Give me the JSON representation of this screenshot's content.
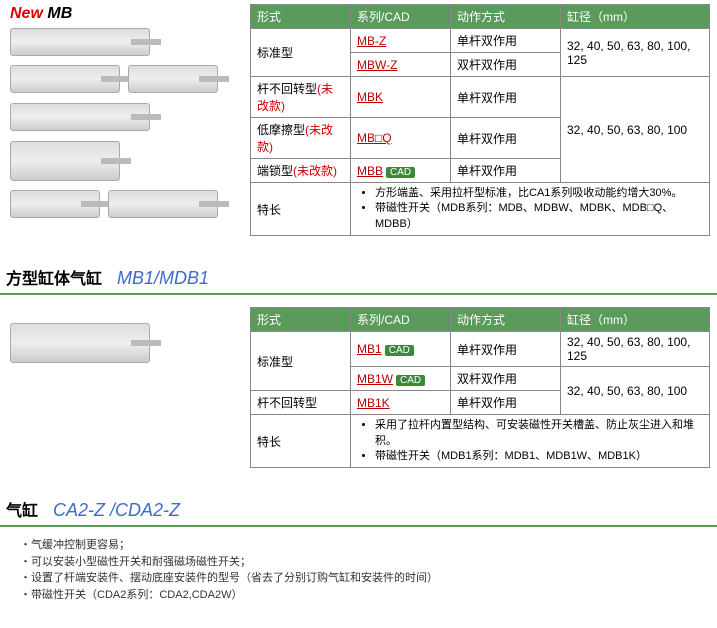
{
  "section1": {
    "badge": {
      "new": "New",
      "model": "MB"
    },
    "table": {
      "headers": [
        "形式",
        "系列/CAD",
        "动作方式",
        "缸径（mm）"
      ],
      "rows": [
        {
          "type": "标准型",
          "series": "MB-Z",
          "cad": false,
          "act": "单杆双作用",
          "bore": "32, 40, 50, 63, 80, 100, 125",
          "typeRowspan": 2,
          "boreRowspan": 2
        },
        {
          "series": "MBW-Z",
          "cad": false,
          "act": "双杆双作用"
        },
        {
          "type": "杆不回转型(未改款)",
          "series": "MBK",
          "cad": false,
          "act": "单杆双作用",
          "bore": "32, 40, 50, 63, 80, 100",
          "boreRowspan": 3,
          "typeRed": true
        },
        {
          "type": "低摩擦型(未改款)",
          "series": "MB□Q",
          "cad": false,
          "act": "单杆双作用",
          "typeRed": true
        },
        {
          "type": "端锁型(未改款)",
          "series": "MBB",
          "cad": true,
          "act": "单杆双作用",
          "typeRed": true
        }
      ],
      "featLabel": "特长",
      "features": [
        "方形端盖、采用拉杆型标准，比CA1系列吸收动能约增大30%。",
        "带磁性开关（MDB系列：MDB、MDBW、MDBK、MDB□Q、MDBB）"
      ]
    }
  },
  "section2": {
    "title_jp": "方型缸体气缸",
    "title_en": "MB1/MDB1",
    "table": {
      "headers": [
        "形式",
        "系列/CAD",
        "动作方式",
        "缸径（mm）"
      ],
      "rows": [
        {
          "type": "标准型",
          "series": "MB1",
          "cad": true,
          "act": "单杆双作用",
          "bore": "32, 40, 50, 63, 80, 100, 125",
          "typeRowspan": 2
        },
        {
          "series": "MB1W",
          "cad": true,
          "act": "双杆双作用"
        },
        {
          "type": "杆不回转型",
          "series": "MB1K",
          "cad": false,
          "act": "单杆双作用",
          "bore": "32, 40, 50, 63, 80, 100"
        }
      ],
      "featLabel": "特长",
      "features": [
        "采用了拉杆内置型结构、可安装磁性开关槽盖、防止灰尘进入和堆积。",
        "带磁性开关（MDB1系列：MDB1、MDB1W、MDB1K）"
      ]
    }
  },
  "section3": {
    "title_jp": "气缸",
    "title_en": "CA2-Z /CDA2-Z",
    "notes": [
      "气缓冲控制更容易；",
      "可以安装小型磁性开关和耐强磁场磁性开关；",
      "设置了杆端安装件、摆动底座安装件的型号（省去了分别订购气缸和安装件的时间）",
      "带磁性开关（CDA2系列：CDA2,CDA2W）"
    ]
  },
  "cad_label": "CAD"
}
